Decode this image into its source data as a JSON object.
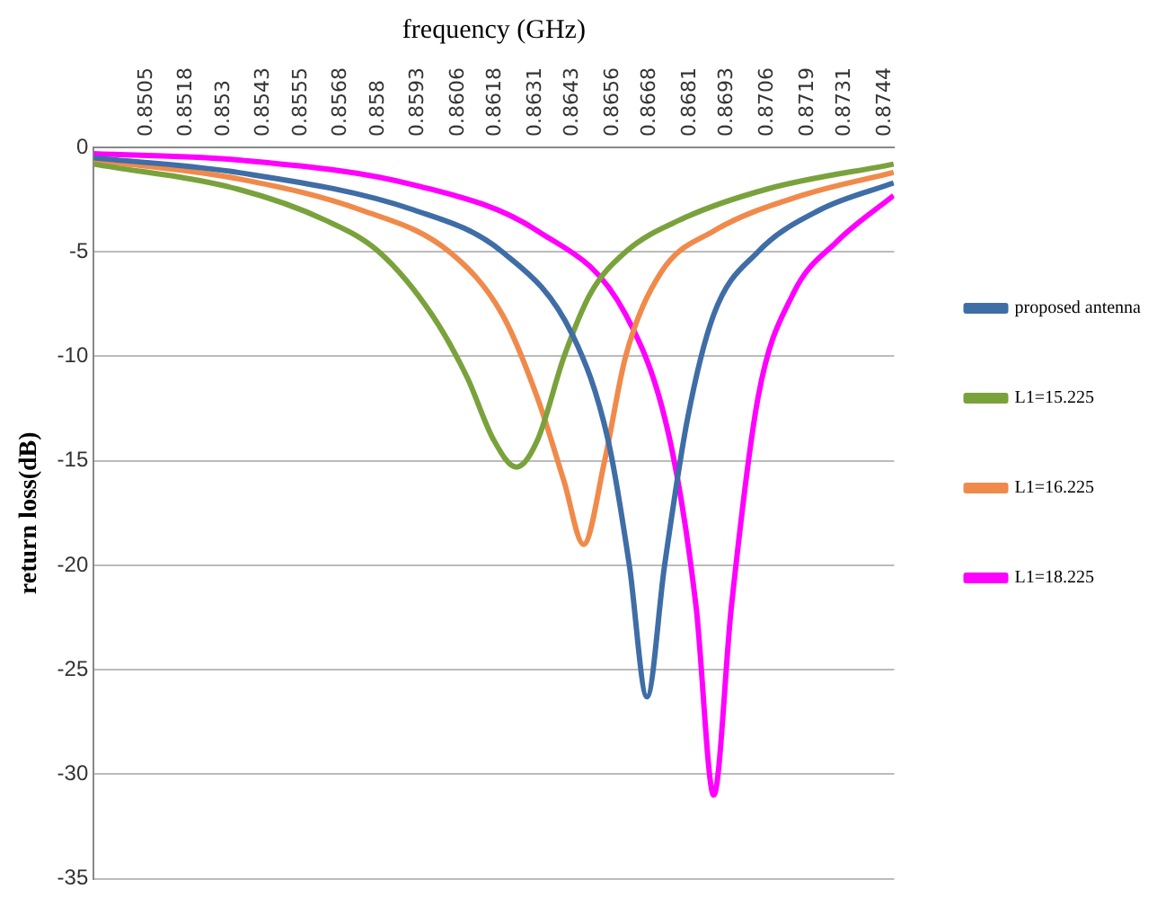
{
  "chart_data": {
    "type": "line",
    "xlabel": "frequency (GHz)",
    "ylabel": "return loss(dB)",
    "xlim": [
      0.8488,
      0.8747
    ],
    "xticks": [
      0.8505,
      0.8518,
      0.853,
      0.8543,
      0.8555,
      0.8568,
      0.858,
      0.8593,
      0.8606,
      0.8618,
      0.8631,
      0.8643,
      0.8656,
      0.8668,
      0.8681,
      0.8693,
      0.8706,
      0.8719,
      0.8731,
      0.8744
    ],
    "ylim": [
      -35,
      0
    ],
    "yticks": [
      0,
      -5,
      -10,
      -15,
      -20,
      -25,
      -30,
      -35
    ],
    "grid": "y",
    "legend": "right",
    "marker": "none",
    "line_style": "solid",
    "series": [
      {
        "name": "proposed antenna",
        "color": "#3f6da6",
        "x": [
          0.8488,
          0.85347,
          0.85917,
          0.86202,
          0.8643,
          0.86544,
          0.86613,
          0.8667,
          0.86727,
          0.86801,
          0.86886,
          0.87029,
          0.87228,
          0.87468
        ],
        "values": [
          -0.5,
          -1.2,
          -3,
          -5,
          -9,
          -14,
          -20,
          -26.3,
          -20,
          -13,
          -8,
          -5,
          -3,
          -1.7
        ]
      },
      {
        "name": "L1=15.225",
        "color": "#7aa23c",
        "x": [
          0.8488,
          0.85347,
          0.85632,
          0.85803,
          0.85974,
          0.86088,
          0.86174,
          0.86248,
          0.86316,
          0.86402,
          0.86487,
          0.86601,
          0.86772,
          0.87057,
          0.87468
        ],
        "values": [
          -0.8,
          -2,
          -3.5,
          -5,
          -8,
          -11,
          -14,
          -15.3,
          -14,
          -10,
          -7,
          -5,
          -3.5,
          -2,
          -0.8
        ]
      },
      {
        "name": "L1=16.225",
        "color": "#f08a4b",
        "x": [
          0.8488,
          0.85347,
          0.85746,
          0.86031,
          0.86202,
          0.86316,
          0.86402,
          0.86465,
          0.86533,
          0.86601,
          0.86715,
          0.86886,
          0.87171,
          0.87468
        ],
        "values": [
          -0.6,
          -1.5,
          -3,
          -5,
          -8,
          -12,
          -16,
          -19,
          -15,
          -10,
          -6,
          -4,
          -2.3,
          -1.2
        ]
      },
      {
        "name": "L1=18.225",
        "color": "#ff00ff",
        "x": [
          0.8488,
          0.85347,
          0.85917,
          0.86316,
          0.86601,
          0.86744,
          0.86829,
          0.86886,
          0.86943,
          0.87029,
          0.87143,
          0.87285,
          0.87468
        ],
        "values": [
          -0.3,
          -0.6,
          -1.8,
          -4,
          -8,
          -14,
          -22,
          -31,
          -22,
          -12,
          -7,
          -4.5,
          -2.3
        ]
      }
    ]
  }
}
